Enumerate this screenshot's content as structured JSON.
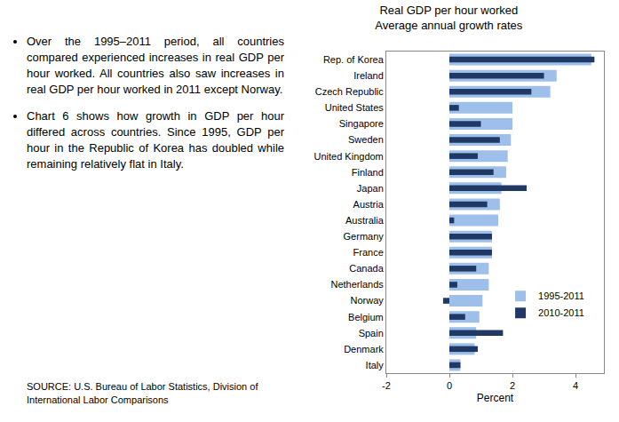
{
  "chart_data": {
    "type": "bar",
    "orientation": "horizontal",
    "title": "Real GDP per hour worked",
    "subtitle": "Average annual growth rates",
    "xlabel": "Percent",
    "categories": [
      "Rep. of Korea",
      "Ireland",
      "Czech Republic",
      "United States",
      "Singapore",
      "Sweden",
      "United Kingdom",
      "Finland",
      "Japan",
      "Austria",
      "Australia",
      "Germany",
      "France",
      "Canada",
      "Netherlands",
      "Norway",
      "Belgium",
      "Spain",
      "Denmark",
      "Italy"
    ],
    "series": [
      {
        "name": "1995-2011",
        "color": "#9dbfe9",
        "values": [
          4.5,
          3.4,
          3.2,
          2.0,
          2.0,
          1.95,
          1.85,
          1.8,
          1.65,
          1.6,
          1.55,
          1.35,
          1.35,
          1.25,
          1.25,
          1.05,
          0.95,
          0.85,
          0.8,
          0.35
        ]
      },
      {
        "name": "2010-2011",
        "color": "#1f3864",
        "values": [
          4.6,
          3.0,
          2.6,
          0.3,
          1.0,
          1.6,
          0.9,
          1.4,
          2.45,
          1.2,
          0.15,
          1.35,
          1.35,
          0.85,
          0.25,
          -0.2,
          0.5,
          1.7,
          0.9,
          0.35
        ]
      }
    ],
    "xlim": [
      -2,
      4.9
    ],
    "xticks": [
      -2,
      0,
      2,
      4
    ],
    "grid": false,
    "legend": "right",
    "annotations": [
      "Over the 1995–2011 period, all countries compared experienced increases in real GDP per hour worked. All countries also saw increases in real GDP per hour worked in 2011 except Norway.",
      "Chart 6 shows how growth in GDP per hour differed across countries. Since 1995, GDP per hour in the Republic of Korea has doubled while remaining relatively flat in Italy."
    ],
    "source": "SOURCE: U.S. Bureau of Labor Statistics, Division of International Labor Comparisons"
  }
}
